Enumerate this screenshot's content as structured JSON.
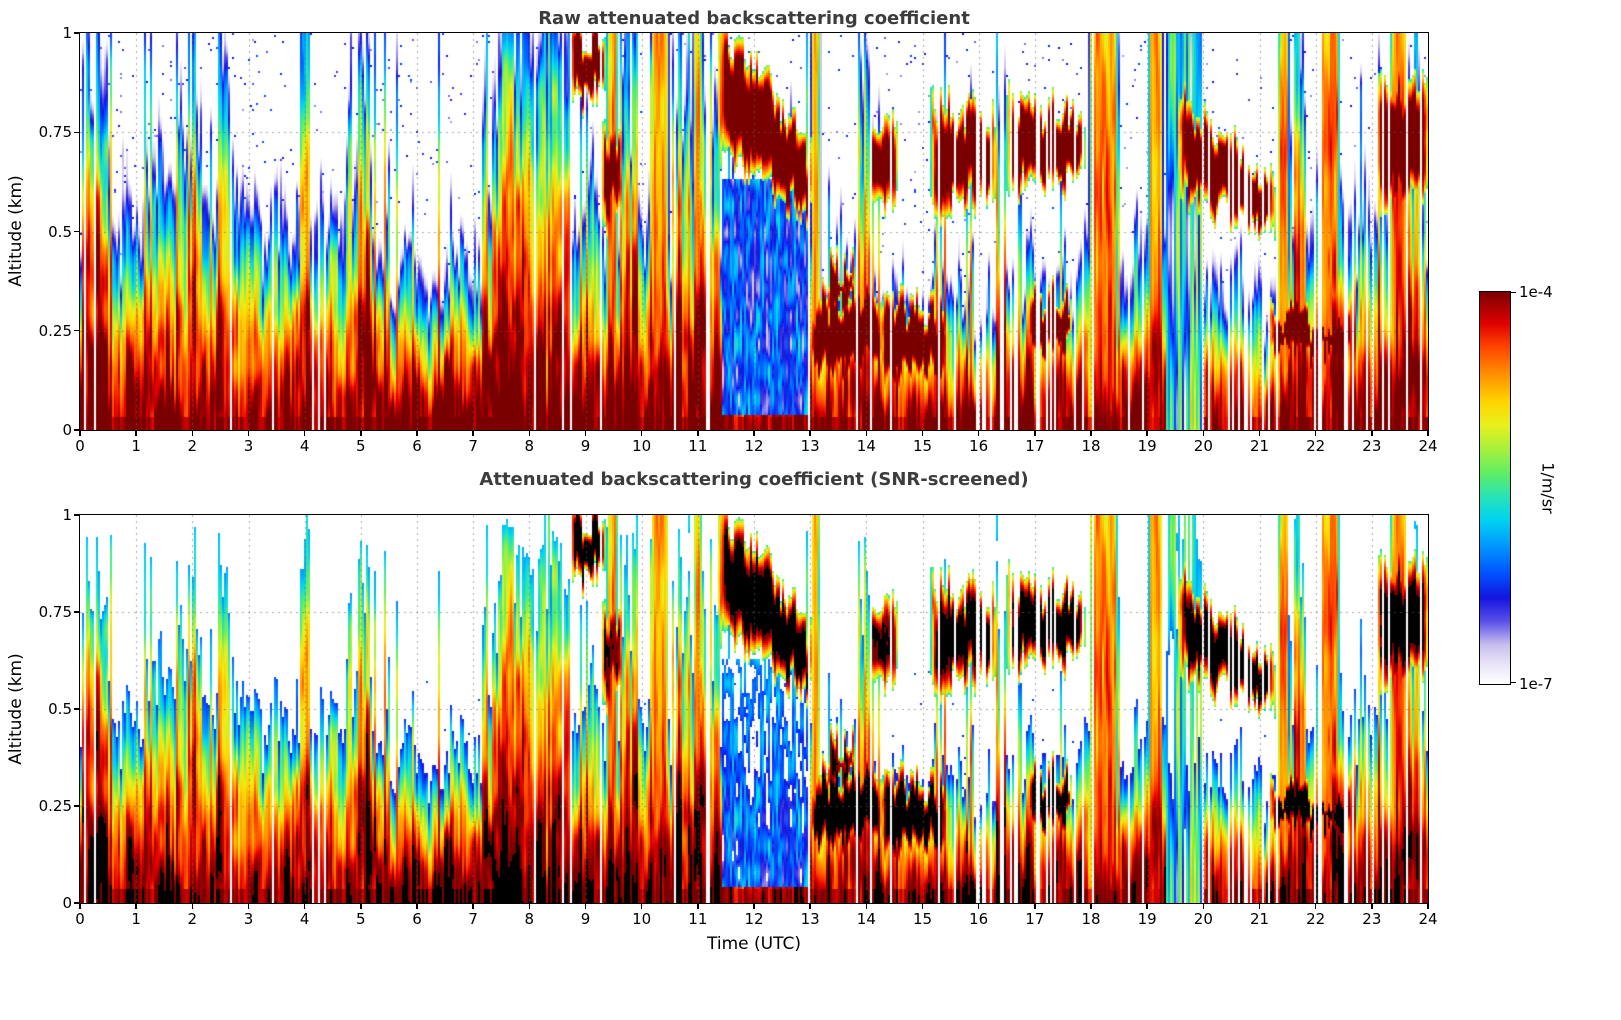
{
  "figure": {
    "background": "#ffffff"
  },
  "axes": {
    "x_label": "Time (UTC)",
    "y_label": "Altitude (km)",
    "x_range": [
      0,
      24
    ],
    "y_range": [
      0,
      1
    ],
    "x_ticks": [
      0,
      1,
      2,
      3,
      4,
      5,
      6,
      7,
      8,
      9,
      10,
      11,
      12,
      13,
      14,
      15,
      16,
      17,
      18,
      19,
      20,
      21,
      22,
      23,
      24
    ],
    "x_tick_labels": [
      "0",
      "1",
      "2",
      "3",
      "4",
      "5",
      "6",
      "7",
      "8",
      "9",
      "10",
      "11",
      "12",
      "13",
      "14",
      "15",
      "16",
      "17",
      "18",
      "19",
      "20",
      "21",
      "22",
      "23",
      "24"
    ],
    "y_ticks": [
      0,
      0.25,
      0.5,
      0.75,
      1
    ],
    "y_tick_labels": [
      "0",
      "0.25",
      "0.5",
      "0.75",
      "1"
    ]
  },
  "colorbar": {
    "label": "1/m/sr",
    "max_label": "1e-4",
    "min_label": "1e-7",
    "scale": "log",
    "stops": [
      {
        "p": 0.0,
        "c": "#ffffff"
      },
      {
        "p": 0.05,
        "c": "#eae4f7"
      },
      {
        "p": 0.1,
        "c": "#c8beee"
      },
      {
        "p": 0.16,
        "c": "#5a50e8"
      },
      {
        "p": 0.22,
        "c": "#1414e0"
      },
      {
        "p": 0.28,
        "c": "#0050ff"
      },
      {
        "p": 0.35,
        "c": "#0095ff"
      },
      {
        "p": 0.42,
        "c": "#00d4f0"
      },
      {
        "p": 0.48,
        "c": "#2ae4b4"
      },
      {
        "p": 0.54,
        "c": "#62ee62"
      },
      {
        "p": 0.6,
        "c": "#a8f03c"
      },
      {
        "p": 0.66,
        "c": "#e8f01e"
      },
      {
        "p": 0.72,
        "c": "#ffd400"
      },
      {
        "p": 0.79,
        "c": "#ff9000"
      },
      {
        "p": 0.86,
        "c": "#ff4400"
      },
      {
        "p": 0.92,
        "c": "#e00000"
      },
      {
        "p": 1.0,
        "c": "#7a0000"
      }
    ]
  },
  "chart_data": [
    {
      "type": "heatmap",
      "title": "Raw attenuated backscattering coefficient",
      "xlabel": "Time (UTC)",
      "ylabel": "Altitude (km)",
      "x_range": [
        0,
        24
      ],
      "y_range": [
        0,
        1
      ],
      "value_range": [
        "1e-7",
        "1e-4"
      ],
      "units": "1/m/sr",
      "grid": "dotted",
      "estimated_structure": {
        "bl_km": [
          0.5,
          0.48,
          0.55,
          0.5,
          0.52,
          0.42,
          0.38,
          0.42,
          0.5,
          0.55,
          0.45,
          0.5,
          0.3,
          0.33,
          0.38,
          0.33,
          0.33,
          0.38,
          0.35,
          0.4,
          0.32,
          0.33,
          0.45,
          0.5,
          0.48
        ],
        "surface_strength": [
          1,
          1,
          1,
          1,
          1,
          1,
          1,
          1,
          1,
          1,
          0.95,
          0.9,
          0.7,
          0.85,
          0.85,
          0.8,
          0.8,
          0.85,
          0.8,
          0.85,
          0.75,
          0.8,
          0.9,
          0.95,
          0.9
        ],
        "clouds": [
          {
            "t0": 8.75,
            "t1": 9.35,
            "b0": 0.82,
            "b1": 0.85,
            "h0": 1.02,
            "h1": 1.0,
            "i": 0.9
          },
          {
            "t0": 9.3,
            "t1": 9.65,
            "b0": 0.5,
            "b1": 0.55,
            "h0": 0.8,
            "h1": 0.75,
            "i": 0.6
          },
          {
            "t0": 11.35,
            "t1": 13.05,
            "b0": 0.7,
            "b1": 0.52,
            "h0": 1.03,
            "h1": 0.72,
            "i": 1.0
          },
          {
            "t0": 13.0,
            "t1": 14.3,
            "b0": 0.13,
            "b1": 0.15,
            "h0": 0.34,
            "h1": 0.33,
            "i": 1.0
          },
          {
            "t0": 13.3,
            "t1": 13.8,
            "b0": 0.3,
            "b1": 0.33,
            "h0": 0.42,
            "h1": 0.4,
            "i": 0.5
          },
          {
            "t0": 14.25,
            "t1": 15.45,
            "b0": 0.12,
            "b1": 0.14,
            "h0": 0.32,
            "h1": 0.3,
            "i": 0.95
          },
          {
            "t0": 14.05,
            "t1": 14.55,
            "b0": 0.55,
            "b1": 0.6,
            "h0": 0.75,
            "h1": 0.78,
            "i": 0.6
          },
          {
            "t0": 15.15,
            "t1": 16.3,
            "b0": 0.55,
            "b1": 0.58,
            "h0": 0.82,
            "h1": 0.8,
            "i": 0.9
          },
          {
            "t0": 16.5,
            "t1": 17.9,
            "b0": 0.6,
            "b1": 0.62,
            "h0": 0.83,
            "h1": 0.8,
            "i": 1.0
          },
          {
            "t0": 16.9,
            "t1": 17.65,
            "b0": 0.17,
            "b1": 0.2,
            "h0": 0.35,
            "h1": 0.33,
            "i": 0.9
          },
          {
            "t0": 19.55,
            "t1": 21.3,
            "b0": 0.6,
            "b1": 0.48,
            "h0": 0.85,
            "h1": 0.62,
            "i": 0.95
          },
          {
            "t0": 21.15,
            "t1": 22.7,
            "b0": 0.17,
            "b1": 0.2,
            "h0": 0.3,
            "h1": 0.28,
            "i": 0.9
          },
          {
            "t0": 23.1,
            "t1": 24.0,
            "b0": 0.55,
            "b1": 0.6,
            "h0": 0.9,
            "h1": 0.85,
            "i": 1.0
          }
        ],
        "blue_regions": [
          {
            "t0": 11.42,
            "t1": 13.0,
            "z0": 0.04,
            "z1": 0.63,
            "style": "deep"
          },
          {
            "t0": 19.32,
            "t1": 19.98,
            "z0": 0.0,
            "z1": 1.0,
            "style": "streak"
          }
        ],
        "warm_columns": [
          [
            9.35,
            9.6
          ],
          [
            10.15,
            10.5
          ],
          [
            10.9,
            11.1
          ],
          [
            13.0,
            13.2
          ],
          [
            17.95,
            18.5
          ],
          [
            19.0,
            19.3
          ],
          [
            21.3,
            21.55
          ],
          [
            22.05,
            22.45
          ],
          [
            23.3,
            23.65
          ]
        ],
        "plume_boost": [
          [
            0.02,
            0.55
          ],
          [
            2.45,
            2.68
          ],
          [
            3.92,
            4.08
          ],
          [
            4.95,
            5.18
          ],
          [
            7.35,
            8.72
          ],
          [
            9.6,
            9.95
          ],
          [
            10.55,
            11.4
          ],
          [
            13.85,
            14.15
          ],
          [
            16.3,
            16.48
          ],
          [
            21.6,
            21.78
          ],
          [
            23.65,
            23.85
          ]
        ],
        "gap_heavy": [
          [
            7.9,
            9.7,
            0.85
          ],
          [
            10.6,
            11.4,
            0.86
          ],
          [
            13.1,
            15.6,
            0.88
          ],
          [
            15.75,
            18.05,
            0.72
          ],
          [
            18.45,
            19.0,
            0.78
          ],
          [
            19.9,
            21.5,
            0.72
          ],
          [
            21.8,
            23.9,
            0.78
          ]
        ]
      }
    },
    {
      "type": "heatmap",
      "title": "Attenuated backscattering coefficient (SNR-screened)",
      "xlabel": "Time (UTC)",
      "ylabel": "Altitude (km)",
      "x_range": [
        0,
        24
      ],
      "y_range": [
        0,
        1
      ],
      "value_range": [
        "1e-7",
        "1e-4"
      ],
      "units": "1/m/sr",
      "grid": "dotted",
      "screened": true,
      "screening": {
        "black_above_log10": -3.85,
        "blank_below_log10_at_surface": -6.7,
        "blank_slope_per_km": 0.9
      },
      "estimated_structure_same_as_panel": 1
    }
  ]
}
